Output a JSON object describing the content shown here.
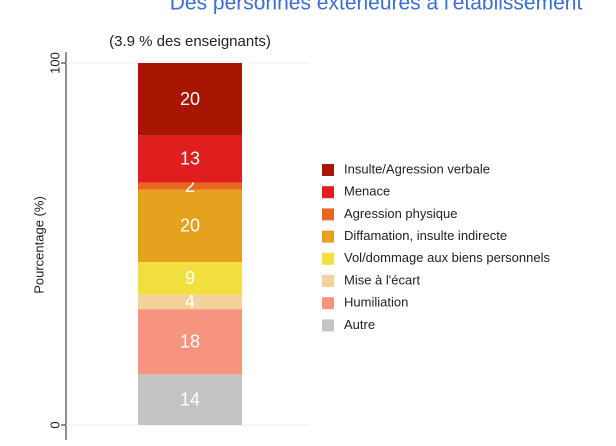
{
  "chart_data": {
    "type": "stacked_bar",
    "title": "Des personnes extérieures à l'établissement",
    "subtitle": "(3.9 % des enseignants)",
    "y_label": "Pourcentage (%)",
    "categories": [
      null
    ],
    "series": [
      {
        "name": "Insulte/Agression verbale",
        "color": "#a81500",
        "values": [
          20
        ]
      },
      {
        "name": "Menace",
        "color": "#e01e1e",
        "values": [
          13
        ]
      },
      {
        "name": "Agression physique",
        "color": "#e8661e",
        "values": [
          2
        ]
      },
      {
        "name": "Diffamation, insulte indirecte",
        "color": "#e6a11e",
        "values": [
          20
        ]
      },
      {
        "name": "Vol/dommage aux biens personnels",
        "color": "#f2e040",
        "values": [
          9
        ]
      },
      {
        "name": "Mise à l'écart",
        "color": "#f3d39a",
        "values": [
          4
        ]
      },
      {
        "name": "Humiliation",
        "color": "#f79480",
        "values": [
          18
        ]
      },
      {
        "name": "Autre",
        "color": "#c4c4c4",
        "values": [
          14
        ]
      }
    ],
    "ylim": [
      0,
      100
    ],
    "yticks": [
      0,
      100
    ],
    "grid": true,
    "legend": "right"
  }
}
